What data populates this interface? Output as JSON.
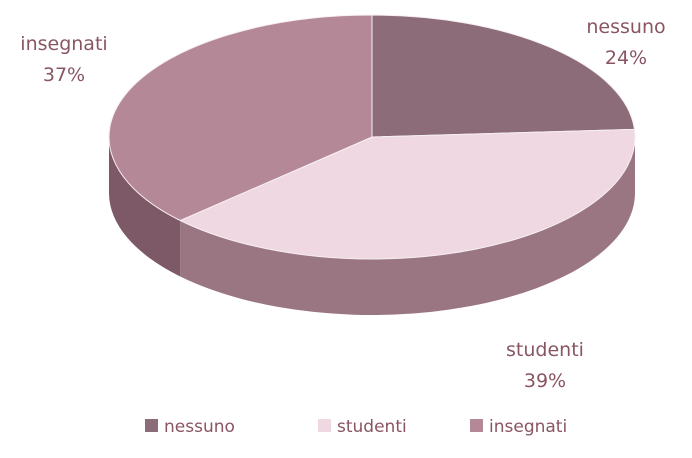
{
  "chart_data": {
    "type": "pie",
    "style": "3d",
    "labels": [
      "nessuno",
      "studenti",
      "insegnati"
    ],
    "values": [
      24,
      39,
      37
    ],
    "value_labels": [
      "24%",
      "39%",
      "37%"
    ],
    "colors": {
      "nessuno": {
        "top": "#8c6c78",
        "side": "#5a4350"
      },
      "studenti": {
        "top": "#efd8e2",
        "side": "#9a7682"
      },
      "insegnati": {
        "top": "#b48896",
        "side": "#7d5866"
      }
    },
    "legend_position": "bottom",
    "title": ""
  }
}
